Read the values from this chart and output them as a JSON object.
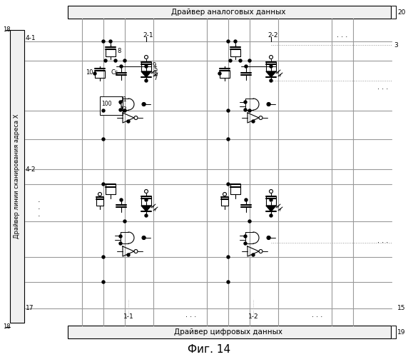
{
  "title": "Фиг. 14",
  "analog_driver_label": "Драйвер аналоговых данных",
  "digital_driver_label": "Драйвер цифровых данных",
  "scan_driver_label": "Драйвер линии сканирования адреса X",
  "fig_width": 5.86,
  "fig_height": 5.0,
  "dpi": 100
}
